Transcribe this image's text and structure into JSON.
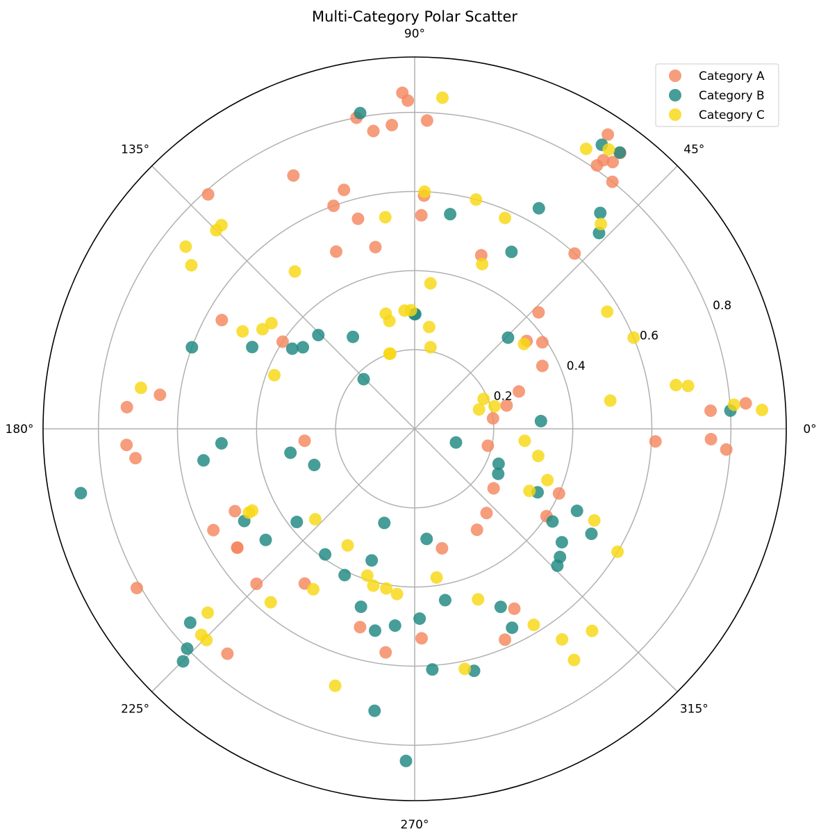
{
  "chart_data": {
    "type": "scatter",
    "subtype": "polar",
    "title": "Multi-Category Polar Scatter",
    "angle_unit": "degrees",
    "angle_ticks": [
      "0°",
      "45°",
      "90°",
      "135°",
      "180°",
      "225°",
      "270°",
      "315°"
    ],
    "angle_tick_values": [
      0,
      45,
      90,
      135,
      180,
      225,
      270,
      315
    ],
    "radial_ticks": [
      "0.2",
      "0.4",
      "0.6",
      "0.8"
    ],
    "radial_tick_values": [
      0.2,
      0.4,
      0.6,
      0.8
    ],
    "radial_range": [
      0,
      0.94
    ],
    "grid": true,
    "legend_position": "top-right",
    "series": [
      {
        "name": "Category A",
        "color": "#f4875f",
        "points": [
          [
            4.4,
            0.84
          ],
          [
            3.5,
            0.75
          ],
          [
            358.0,
            0.75
          ],
          [
            356.2,
            0.79
          ],
          [
            7.6,
            0.2
          ],
          [
            14.2,
            0.24
          ],
          [
            19.7,
            0.28
          ],
          [
            26.2,
            0.36
          ],
          [
            34.1,
            0.39
          ],
          [
            38.1,
            0.36
          ],
          [
            43.2,
            0.43
          ],
          [
            47.6,
            0.6
          ],
          [
            51.3,
            0.8
          ],
          [
            53.4,
            0.84
          ],
          [
            54.9,
            0.83
          ],
          [
            56.7,
            0.89
          ],
          [
            53.3,
            0.87
          ],
          [
            55.3,
            0.81
          ],
          [
            69.0,
            0.47
          ],
          [
            88.2,
            0.54
          ],
          [
            87.7,
            0.59
          ],
          [
            87.7,
            0.78
          ],
          [
            91.2,
            0.83
          ],
          [
            92.1,
            0.85
          ],
          [
            94.3,
            0.77
          ],
          [
            97.9,
            0.76
          ],
          [
            100.6,
            0.8
          ],
          [
            105.1,
            0.55
          ],
          [
            102.2,
            0.47
          ],
          [
            106.5,
            0.63
          ],
          [
            110.0,
            0.6
          ],
          [
            113.9,
            0.49
          ],
          [
            115.6,
            0.71
          ],
          [
            131.4,
            0.79
          ],
          [
            146.6,
            0.4
          ],
          [
            150.6,
            0.56
          ],
          [
            172.4,
            0.65
          ],
          [
            175.7,
            0.73
          ],
          [
            183.2,
            0.73
          ],
          [
            186.0,
            0.71
          ],
          [
            186.2,
            0.28
          ],
          [
            204.6,
            0.5
          ],
          [
            209.8,
            0.81
          ],
          [
            206.7,
            0.57
          ],
          [
            213.8,
            0.54
          ],
          [
            230.2,
            0.74
          ],
          [
            213.8,
            0.54
          ],
          [
            224.4,
            0.56
          ],
          [
            234.6,
            0.48
          ],
          [
            254.6,
            0.52
          ],
          [
            262.6,
            0.57
          ],
          [
            282.9,
            0.31
          ],
          [
            271.9,
            0.53
          ],
          [
            293.2,
            0.58
          ],
          [
            301.7,
            0.3
          ],
          [
            310.5,
            0.28
          ],
          [
            323.0,
            0.25
          ],
          [
            326.5,
            0.4
          ],
          [
            347.0,
            0.19
          ],
          [
            357.0,
            0.61
          ],
          [
            335.9,
            0.4
          ],
          [
            299.0,
            0.52
          ]
        ]
      },
      {
        "name": "Category B",
        "color": "#1f8780",
        "points": [
          [
            3.3,
            0.8
          ],
          [
            3.5,
            0.32
          ],
          [
            44.3,
            0.33
          ],
          [
            53.4,
            0.87
          ],
          [
            56.6,
            0.86
          ],
          [
            49.3,
            0.72
          ],
          [
            61.3,
            0.51
          ],
          [
            60.6,
            0.64
          ],
          [
            46.7,
            0.68
          ],
          [
            80.6,
            0.55
          ],
          [
            89.7,
            0.29
          ],
          [
            90.1,
            0.29
          ],
          [
            99.8,
            0.81
          ],
          [
            123.9,
            0.28
          ],
          [
            135.8,
            0.18
          ],
          [
            135.8,
            0.34
          ],
          [
            143.9,
            0.35
          ],
          [
            146.8,
            0.37
          ],
          [
            153.3,
            0.46
          ],
          [
            159.9,
            0.6
          ],
          [
            184.3,
            0.49
          ],
          [
            188.5,
            0.54
          ],
          [
            190.9,
            0.86
          ],
          [
            190.9,
            0.32
          ],
          [
            199.8,
            0.27
          ],
          [
            208.4,
            0.49
          ],
          [
            220.8,
            0.75
          ],
          [
            225.1,
            0.83
          ],
          [
            224.0,
            0.8
          ],
          [
            216.7,
            0.47
          ],
          [
            218.3,
            0.38
          ],
          [
            234.5,
            0.39
          ],
          [
            244.4,
            0.41
          ],
          [
            253.2,
            0.47
          ],
          [
            258.9,
            0.52
          ],
          [
            252.1,
            0.25
          ],
          [
            251.9,
            0.35
          ],
          [
            268.5,
            0.84
          ],
          [
            261.9,
            0.72
          ],
          [
            271.5,
            0.48
          ],
          [
            274.2,
            0.61
          ],
          [
            295.8,
            0.5
          ],
          [
            283.8,
            0.63
          ],
          [
            296.1,
            0.56
          ],
          [
            341.7,
            0.11
          ],
          [
            337.4,
            0.23
          ],
          [
            331.7,
            0.24
          ],
          [
            316.2,
            0.5
          ],
          [
            318.6,
            0.49
          ],
          [
            326.1,
            0.42
          ],
          [
            322.4,
            0.47
          ],
          [
            332.7,
            0.35
          ],
          [
            333.2,
            0.46
          ],
          [
            329.3,
            0.52
          ],
          [
            276.2,
            0.28
          ],
          [
            280.1,
            0.44
          ],
          [
            264.3,
            0.5
          ]
        ]
      },
      {
        "name": "Category C",
        "color": "#f8d813",
        "points": [
          [
            3.1,
            0.88
          ],
          [
            4.3,
            0.81
          ],
          [
            8.9,
            0.7
          ],
          [
            9.5,
            0.67
          ],
          [
            8.2,
            0.5
          ],
          [
            22.6,
            0.6
          ],
          [
            31.3,
            0.57
          ],
          [
            15.8,
            0.21
          ],
          [
            16.7,
            0.17
          ],
          [
            23.4,
            0.19
          ],
          [
            37.8,
            0.35
          ],
          [
            47.7,
            0.7
          ],
          [
            55.2,
            0.86
          ],
          [
            58.5,
            0.83
          ],
          [
            67.7,
            0.45
          ],
          [
            66.8,
            0.58
          ],
          [
            75.0,
            0.6
          ],
          [
            83.8,
            0.37
          ],
          [
            79.0,
            0.21
          ],
          [
            81.9,
            0.26
          ],
          [
            85.2,
            0.84
          ],
          [
            87.6,
            0.6
          ],
          [
            97.9,
            0.54
          ],
          [
            104.1,
            0.3
          ],
          [
            91.8,
            0.3
          ],
          [
            94.9,
            0.3
          ],
          [
            103.2,
            0.28
          ],
          [
            108.6,
            0.2
          ],
          [
            108.0,
            0.2
          ],
          [
            127.3,
            0.5
          ],
          [
            133.5,
            0.71
          ],
          [
            135.0,
            0.71
          ],
          [
            141.5,
            0.74
          ],
          [
            143.6,
            0.45
          ],
          [
            146.8,
            0.46
          ],
          [
            143.8,
            0.7
          ],
          [
            150.5,
            0.5
          ],
          [
            159.1,
            0.38
          ],
          [
            171.5,
            0.7
          ],
          [
            206.8,
            0.47
          ],
          [
            206.7,
            0.46
          ],
          [
            222.3,
            0.34
          ],
          [
            221.6,
            0.7
          ],
          [
            225.4,
            0.75
          ],
          [
            230.3,
            0.57
          ],
          [
            237.7,
            0.48
          ],
          [
            224.0,
            0.75
          ],
          [
            240.1,
            0.34
          ],
          [
            252.1,
            0.39
          ],
          [
            255.2,
            0.41
          ],
          [
            259.9,
            0.41
          ],
          [
            263.9,
            0.42
          ],
          [
            252.8,
            0.68
          ],
          [
            278.4,
            0.38
          ],
          [
            281.8,
            0.62
          ],
          [
            290.4,
            0.46
          ],
          [
            301.3,
            0.58
          ],
          [
            311.3,
            0.68
          ],
          [
            304.6,
            0.71
          ],
          [
            331.6,
            0.33
          ],
          [
            338.9,
            0.36
          ],
          [
            353.8,
            0.28
          ],
          [
            347.6,
            0.32
          ],
          [
            333.0,
            0.51
          ],
          [
            328.8,
            0.6
          ],
          [
            305.0,
            0.65
          ]
        ]
      }
    ]
  }
}
